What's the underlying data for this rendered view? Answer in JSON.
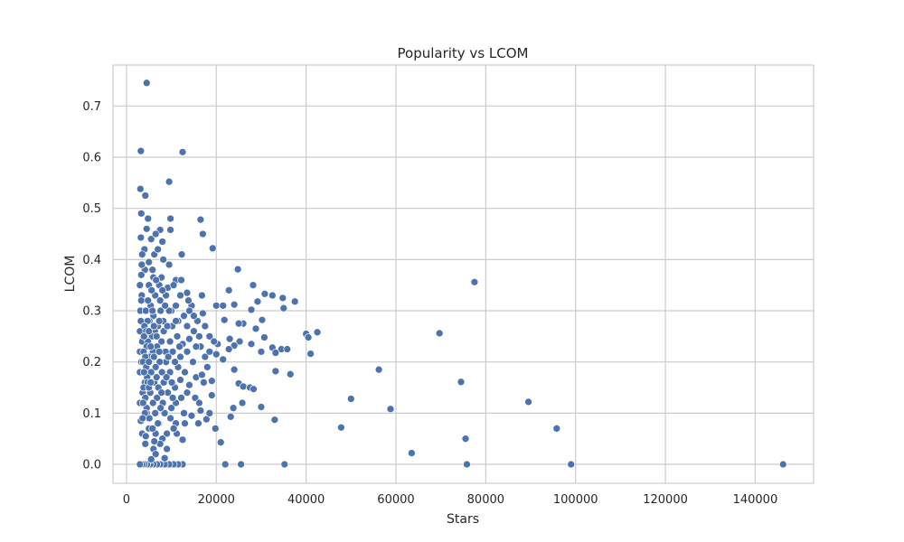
{
  "chart_data": {
    "type": "scatter",
    "title": "Popularity vs LCOM",
    "xlabel": "Stars",
    "ylabel": "LCOM",
    "xlim": [
      -3000,
      153000
    ],
    "ylim": [
      -0.037,
      0.78
    ],
    "xticks": [
      0,
      20000,
      40000,
      60000,
      80000,
      100000,
      120000,
      140000
    ],
    "xtick_labels": [
      "0",
      "20000",
      "40000",
      "60000",
      "80000",
      "100000",
      "120000",
      "140000"
    ],
    "yticks": [
      0.0,
      0.1,
      0.2,
      0.3,
      0.4,
      0.5,
      0.6,
      0.7
    ],
    "ytick_labels": [
      "0.0",
      "0.1",
      "0.2",
      "0.3",
      "0.4",
      "0.5",
      "0.6",
      "0.7"
    ],
    "grid": true,
    "marker_color": "#4c72b0",
    "points": [
      [
        4500,
        0.745
      ],
      [
        3200,
        0.612
      ],
      [
        12500,
        0.61
      ],
      [
        9500,
        0.552
      ],
      [
        3100,
        0.538
      ],
      [
        4200,
        0.525
      ],
      [
        3300,
        0.49
      ],
      [
        4800,
        0.48
      ],
      [
        9800,
        0.48
      ],
      [
        16500,
        0.478
      ],
      [
        7500,
        0.458
      ],
      [
        9800,
        0.458
      ],
      [
        17000,
        0.45
      ],
      [
        4500,
        0.46
      ],
      [
        3200,
        0.443
      ],
      [
        5500,
        0.44
      ],
      [
        8000,
        0.435
      ],
      [
        19200,
        0.422
      ],
      [
        4000,
        0.42
      ],
      [
        6200,
        0.41
      ],
      [
        12300,
        0.41
      ],
      [
        3500,
        0.41
      ],
      [
        5000,
        0.395
      ],
      [
        24800,
        0.381
      ],
      [
        4100,
        0.38
      ],
      [
        3300,
        0.37
      ],
      [
        6000,
        0.365
      ],
      [
        7800,
        0.365
      ],
      [
        77500,
        0.356
      ],
      [
        11000,
        0.36
      ],
      [
        12200,
        0.36
      ],
      [
        5000,
        0.35
      ],
      [
        28200,
        0.35
      ],
      [
        9200,
        0.345
      ],
      [
        13500,
        0.335
      ],
      [
        30800,
        0.333
      ],
      [
        32500,
        0.33
      ],
      [
        34800,
        0.325
      ],
      [
        16800,
        0.33
      ],
      [
        3400,
        0.33
      ],
      [
        37500,
        0.318
      ],
      [
        29200,
        0.318
      ],
      [
        22800,
        0.34
      ],
      [
        20000,
        0.31
      ],
      [
        21500,
        0.31
      ],
      [
        24000,
        0.312
      ],
      [
        35000,
        0.305
      ],
      [
        27800,
        0.302
      ],
      [
        14500,
        0.31
      ],
      [
        10000,
        0.3
      ],
      [
        4000,
        0.3
      ],
      [
        17000,
        0.295
      ],
      [
        26000,
        0.275
      ],
      [
        30200,
        0.282
      ],
      [
        25000,
        0.275
      ],
      [
        21800,
        0.282
      ],
      [
        11500,
        0.28
      ],
      [
        15800,
        0.28
      ],
      [
        42500,
        0.258
      ],
      [
        40000,
        0.255
      ],
      [
        69700,
        0.256
      ],
      [
        28800,
        0.265
      ],
      [
        40500,
        0.248
      ],
      [
        23000,
        0.245
      ],
      [
        25200,
        0.24
      ],
      [
        20300,
        0.235
      ],
      [
        30700,
        0.248
      ],
      [
        24000,
        0.232
      ],
      [
        34500,
        0.225
      ],
      [
        32500,
        0.228
      ],
      [
        27800,
        0.235
      ],
      [
        22800,
        0.225
      ],
      [
        30000,
        0.22
      ],
      [
        41000,
        0.216
      ],
      [
        35800,
        0.225
      ],
      [
        33200,
        0.218
      ],
      [
        16500,
        0.23
      ],
      [
        18500,
        0.22
      ],
      [
        20000,
        0.215
      ],
      [
        21500,
        0.205
      ],
      [
        24000,
        0.185
      ],
      [
        18000,
        0.19
      ],
      [
        56200,
        0.185
      ],
      [
        33200,
        0.182
      ],
      [
        36500,
        0.176
      ],
      [
        74500,
        0.161
      ],
      [
        15500,
        0.17
      ],
      [
        25000,
        0.158
      ],
      [
        26000,
        0.152
      ],
      [
        27500,
        0.15
      ],
      [
        28300,
        0.147
      ],
      [
        17200,
        0.16
      ],
      [
        19000,
        0.163
      ],
      [
        14000,
        0.155
      ],
      [
        50000,
        0.128
      ],
      [
        19000,
        0.135
      ],
      [
        89500,
        0.122
      ],
      [
        25800,
        0.12
      ],
      [
        23800,
        0.11
      ],
      [
        30000,
        0.112
      ],
      [
        58800,
        0.108
      ],
      [
        16500,
        0.105
      ],
      [
        14500,
        0.095
      ],
      [
        23200,
        0.093
      ],
      [
        33000,
        0.087
      ],
      [
        16000,
        0.08
      ],
      [
        17800,
        0.088
      ],
      [
        13000,
        0.08
      ],
      [
        11000,
        0.08
      ],
      [
        47800,
        0.072
      ],
      [
        19800,
        0.07
      ],
      [
        95800,
        0.07
      ],
      [
        11200,
        0.06
      ],
      [
        12500,
        0.048
      ],
      [
        75500,
        0.05
      ],
      [
        21000,
        0.043
      ],
      [
        63500,
        0.022
      ],
      [
        22000,
        0.0
      ],
      [
        25500,
        0.0
      ],
      [
        35200,
        0.0
      ],
      [
        75800,
        0.0
      ],
      [
        99000,
        0.0
      ],
      [
        146200,
        0.0
      ],
      [
        12500,
        0.0
      ],
      [
        11500,
        0.0
      ],
      [
        10500,
        0.0
      ],
      [
        9500,
        0.0
      ],
      [
        8500,
        0.0
      ],
      [
        7500,
        0.0
      ],
      [
        6800,
        0.0
      ],
      [
        6000,
        0.0
      ],
      [
        5300,
        0.0
      ],
      [
        4600,
        0.0
      ],
      [
        4000,
        0.0
      ],
      [
        3500,
        0.0
      ],
      [
        3000,
        0.0
      ],
      [
        8500,
        0.012
      ],
      [
        9000,
        0.03
      ],
      [
        6000,
        0.03
      ],
      [
        4200,
        0.04
      ],
      [
        3500,
        0.06
      ],
      [
        5000,
        0.07
      ],
      [
        3200,
        0.085
      ],
      [
        4500,
        0.1
      ],
      [
        3000,
        0.12
      ],
      [
        3600,
        0.14
      ],
      [
        4100,
        0.16
      ],
      [
        3000,
        0.18
      ],
      [
        3300,
        0.2
      ],
      [
        3000,
        0.22
      ],
      [
        3500,
        0.24
      ],
      [
        3000,
        0.26
      ],
      [
        3200,
        0.28
      ],
      [
        3100,
        0.3
      ],
      [
        3300,
        0.32
      ],
      [
        3000,
        0.35
      ],
      [
        3400,
        0.39
      ],
      [
        6500,
        0.45
      ],
      [
        7000,
        0.42
      ],
      [
        5800,
        0.38
      ],
      [
        8200,
        0.4
      ],
      [
        9500,
        0.39
      ],
      [
        10500,
        0.35
      ],
      [
        12000,
        0.33
      ],
      [
        13800,
        0.32
      ],
      [
        11000,
        0.31
      ],
      [
        14000,
        0.3
      ],
      [
        15000,
        0.29
      ],
      [
        12800,
        0.29
      ],
      [
        13500,
        0.27
      ],
      [
        15000,
        0.26
      ],
      [
        14000,
        0.245
      ],
      [
        12500,
        0.235
      ],
      [
        13500,
        0.22
      ],
      [
        12000,
        0.21
      ],
      [
        14800,
        0.2
      ],
      [
        11500,
        0.19
      ],
      [
        13000,
        0.18
      ],
      [
        12000,
        0.165
      ],
      [
        10800,
        0.15
      ],
      [
        13500,
        0.14
      ],
      [
        12200,
        0.13
      ],
      [
        11000,
        0.12
      ],
      [
        10000,
        0.11
      ],
      [
        12800,
        0.1
      ],
      [
        9800,
        0.09
      ],
      [
        10500,
        0.07
      ],
      [
        9000,
        0.06
      ],
      [
        8000,
        0.05
      ],
      [
        7500,
        0.04
      ],
      [
        6500,
        0.02
      ],
      [
        5500,
        0.01
      ],
      [
        17500,
        0.27
      ],
      [
        18500,
        0.25
      ],
      [
        19500,
        0.24
      ],
      [
        17500,
        0.21
      ],
      [
        16200,
        0.25
      ],
      [
        15500,
        0.23
      ],
      [
        16800,
        0.175
      ],
      [
        15300,
        0.13
      ],
      [
        16200,
        0.12
      ],
      [
        18500,
        0.1
      ],
      [
        8800,
        0.33
      ],
      [
        9500,
        0.3
      ],
      [
        10200,
        0.27
      ],
      [
        8300,
        0.26
      ],
      [
        9700,
        0.24
      ],
      [
        10300,
        0.22
      ],
      [
        8800,
        0.2
      ],
      [
        9700,
        0.18
      ],
      [
        8300,
        0.16
      ],
      [
        9200,
        0.14
      ],
      [
        10300,
        0.13
      ],
      [
        8100,
        0.12
      ],
      [
        8500,
        0.1
      ],
      [
        7200,
        0.08
      ],
      [
        6500,
        0.06
      ],
      [
        11300,
        0.25
      ],
      [
        11800,
        0.23
      ],
      [
        11000,
        0.28
      ],
      [
        10800,
        0.2
      ],
      [
        7300,
        0.35
      ],
      [
        6400,
        0.33
      ],
      [
        5400,
        0.31
      ],
      [
        7600,
        0.3
      ],
      [
        6000,
        0.29
      ],
      [
        5100,
        0.28
      ],
      [
        7000,
        0.27
      ],
      [
        6300,
        0.26
      ],
      [
        5700,
        0.25
      ],
      [
        7800,
        0.24
      ],
      [
        4800,
        0.24
      ],
      [
        6800,
        0.23
      ],
      [
        5900,
        0.22
      ],
      [
        5200,
        0.21
      ],
      [
        7400,
        0.2
      ],
      [
        6500,
        0.19
      ],
      [
        5500,
        0.18
      ],
      [
        7900,
        0.18
      ],
      [
        4600,
        0.17
      ],
      [
        6200,
        0.16
      ],
      [
        7100,
        0.15
      ],
      [
        5300,
        0.14
      ],
      [
        6800,
        0.13
      ],
      [
        5900,
        0.12
      ],
      [
        4500,
        0.11
      ],
      [
        7600,
        0.11
      ],
      [
        6400,
        0.1
      ],
      [
        5100,
        0.09
      ],
      [
        7000,
        0.08
      ],
      [
        5800,
        0.07
      ],
      [
        4300,
        0.055
      ],
      [
        6200,
        0.045
      ],
      [
        4800,
        0.32
      ],
      [
        4300,
        0.3
      ],
      [
        4700,
        0.28
      ],
      [
        4000,
        0.27
      ],
      [
        4400,
        0.26
      ],
      [
        3900,
        0.25
      ],
      [
        4500,
        0.23
      ],
      [
        3800,
        0.22
      ],
      [
        4200,
        0.21
      ],
      [
        3700,
        0.2
      ],
      [
        4400,
        0.19
      ],
      [
        3900,
        0.18
      ],
      [
        4700,
        0.16
      ],
      [
        3800,
        0.15
      ],
      [
        4200,
        0.13
      ],
      [
        3700,
        0.12
      ],
      [
        4100,
        0.1
      ],
      [
        3600,
        0.09
      ],
      [
        6600,
        0.36
      ],
      [
        5600,
        0.34
      ],
      [
        8000,
        0.34
      ],
      [
        7500,
        0.32
      ],
      [
        8600,
        0.31
      ],
      [
        8200,
        0.28
      ],
      [
        9100,
        0.27
      ],
      [
        8700,
        0.22
      ],
      [
        9300,
        0.21
      ],
      [
        7800,
        0.14
      ],
      [
        8900,
        0.17
      ],
      [
        10100,
        0.16
      ],
      [
        5000,
        0.26
      ],
      [
        5000,
        0.2
      ],
      [
        5000,
        0.15
      ],
      [
        6100,
        0.27
      ],
      [
        6100,
        0.21
      ],
      [
        6700,
        0.25
      ],
      [
        6700,
        0.17
      ],
      [
        7300,
        0.22
      ],
      [
        7300,
        0.28
      ],
      [
        5400,
        0.23
      ],
      [
        5400,
        0.16
      ],
      [
        5800,
        0.3
      ]
    ]
  }
}
